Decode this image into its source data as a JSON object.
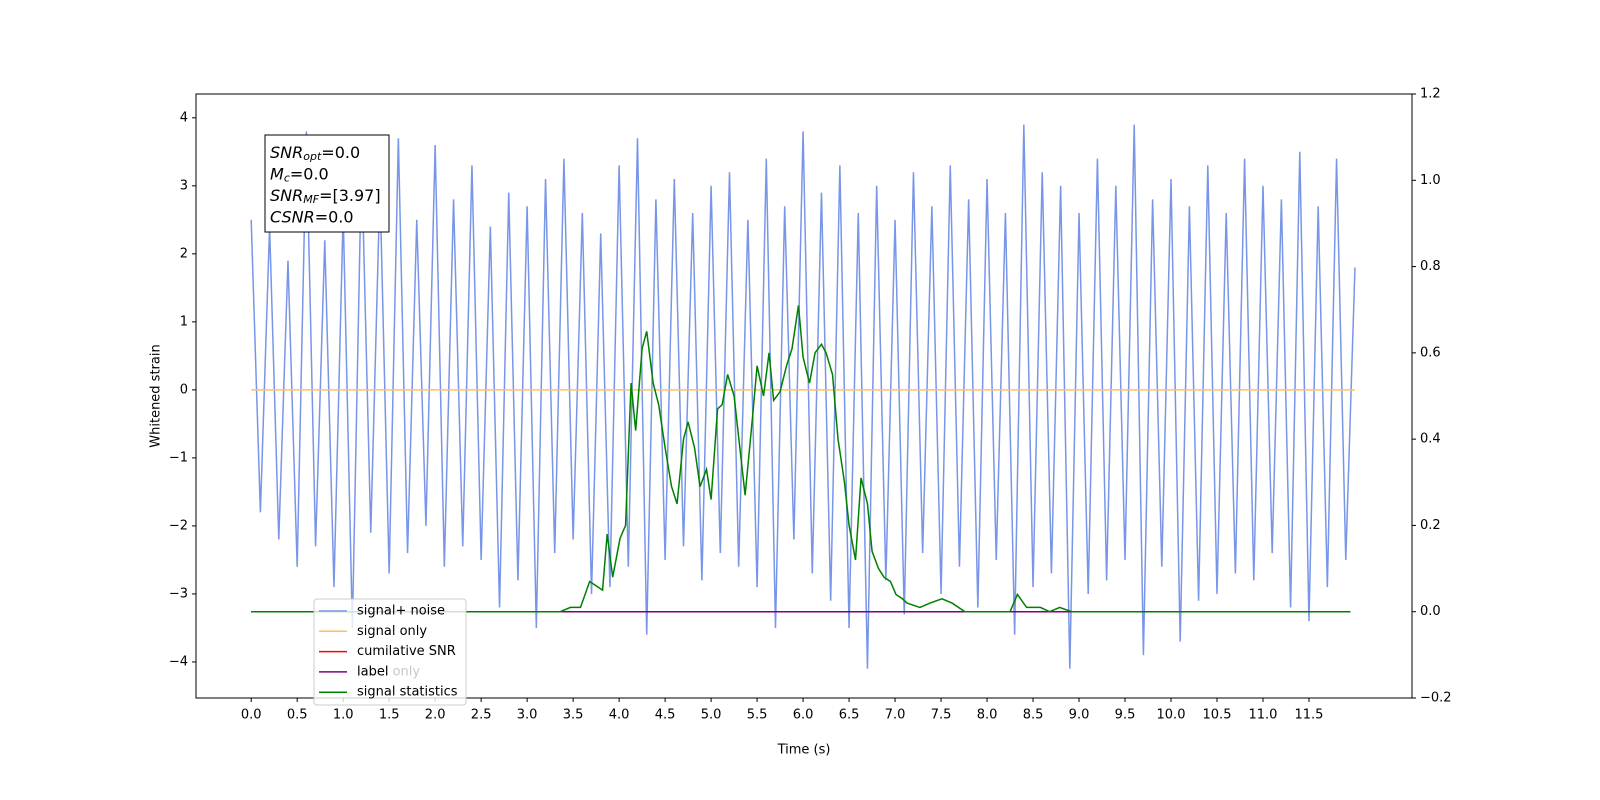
{
  "chart_data": {
    "type": "line",
    "xlabel": "Time (s)",
    "ylabel": "Whitened strain",
    "xlim": [
      -0.6,
      12.62
    ],
    "ylim": [
      -4.53,
      4.35
    ],
    "y2lim": [
      -0.2,
      1.2
    ],
    "xticks": [
      {
        "value": 0,
        "label": "0.0"
      },
      0.5,
      {
        "value": 1,
        "label": "1.0"
      },
      1.5,
      {
        "value": 2,
        "label": "2.0"
      },
      2.5,
      {
        "value": 3,
        "label": "3.0"
      },
      3.5,
      {
        "value": 4,
        "label": "4.0"
      },
      4.5,
      {
        "value": 5,
        "label": "5.0"
      },
      5.5,
      {
        "value": 6,
        "label": "6.0"
      },
      6.5,
      {
        "value": 7,
        "label": "7.0"
      },
      7.5,
      {
        "value": 8,
        "label": "8.0"
      },
      8.5,
      {
        "value": 9,
        "label": "9.0"
      },
      9.5,
      {
        "value": 10,
        "label": "10.0"
      },
      10.5,
      {
        "value": 11,
        "label": "11.0"
      },
      11.5
    ],
    "yticks": [
      {
        "value": -4,
        "label": "−4"
      },
      {
        "value": -3,
        "label": "−3"
      },
      {
        "value": -2,
        "label": "−2"
      },
      {
        "value": -1,
        "label": "−1"
      },
      0,
      1,
      2,
      3,
      4
    ],
    "y2ticks": [
      {
        "value": -0.2,
        "label": "−0.2"
      },
      {
        "value": 0,
        "label": "0.0"
      },
      0.2,
      0.4,
      0.6,
      0.8,
      {
        "value": 1,
        "label": "1.0"
      },
      1.2
    ],
    "legend": "lower left",
    "legend_overlap_text": "label only",
    "annotations": [
      {
        "main": "SNR",
        "sub": "opt",
        "rest": "=0.0"
      },
      {
        "main": "M",
        "sub": "c",
        "rest": "=0.0"
      },
      {
        "main": "SNR",
        "sub": "MF",
        "rest": "=[3.97]"
      },
      {
        "main": "CSNR",
        "sub": "",
        "rest": "=0.0"
      }
    ],
    "series": [
      {
        "name": "signal+ noise",
        "color": "#7895e8",
        "axis": "y",
        "x": [
          0,
          0.1,
          0.2,
          0.3,
          0.4,
          0.5,
          0.6,
          0.7,
          0.8,
          0.9,
          1,
          1.1,
          1.2,
          1.3,
          1.4,
          1.5,
          1.6,
          1.7,
          1.8,
          1.9,
          2,
          2.1,
          2.2,
          2.3,
          2.4,
          2.5,
          2.6,
          2.7,
          2.8,
          2.9,
          3,
          3.1,
          3.2,
          3.3,
          3.4,
          3.5,
          3.6,
          3.7,
          3.8,
          3.9,
          4,
          4.1,
          4.2,
          4.3,
          4.4,
          4.5,
          4.6,
          4.7,
          4.8,
          4.9,
          5,
          5.1,
          5.2,
          5.3,
          5.4,
          5.5,
          5.6,
          5.7,
          5.8,
          5.9,
          6,
          6.1,
          6.2,
          6.3,
          6.4,
          6.5,
          6.6,
          6.7,
          6.8,
          6.9,
          7,
          7.1,
          7.2,
          7.3,
          7.4,
          7.5,
          7.6,
          7.7,
          7.8,
          7.9,
          8,
          8.1,
          8.2,
          8.3,
          8.4,
          8.5,
          8.6,
          8.7,
          8.8,
          8.9,
          9,
          9.1,
          9.2,
          9.3,
          9.4,
          9.5,
          9.6,
          9.7,
          9.8,
          9.9,
          10,
          10.1,
          10.2,
          10.3,
          10.4,
          10.5,
          10.6,
          10.7,
          10.8,
          10.9,
          11,
          11.1,
          11.2,
          11.3,
          11.4,
          11.5,
          11.6,
          11.7,
          11.8,
          11.9,
          12
        ],
        "values": [
          2.5,
          -1.8,
          2.4,
          -2.2,
          1.9,
          -2.6,
          3.8,
          -2.3,
          2.2,
          -2.9,
          2.6,
          -3.5,
          3.4,
          -2.1,
          3.0,
          -2.7,
          3.7,
          -2.4,
          2.5,
          -2.0,
          3.6,
          -2.6,
          2.8,
          -2.3,
          3.3,
          -2.5,
          2.4,
          -3.2,
          2.9,
          -2.8,
          2.7,
          -3.5,
          3.1,
          -2.4,
          3.4,
          -2.2,
          2.6,
          -3.0,
          2.3,
          -2.9,
          3.3,
          -2.6,
          3.7,
          -3.6,
          2.8,
          -2.5,
          3.1,
          -2.3,
          2.6,
          -2.8,
          3.0,
          -2.4,
          3.2,
          -2.6,
          2.5,
          -2.9,
          3.4,
          -3.5,
          2.7,
          -2.2,
          3.8,
          -2.7,
          2.9,
          -3.1,
          3.3,
          -3.5,
          2.6,
          -4.1,
          3.0,
          -2.8,
          2.5,
          -3.3,
          3.2,
          -2.4,
          2.7,
          -3.0,
          3.3,
          -2.6,
          2.8,
          -3.2,
          3.1,
          -2.5,
          2.6,
          -3.6,
          3.9,
          -2.9,
          3.2,
          -2.7,
          3.0,
          -4.1,
          2.6,
          -3.0,
          3.4,
          -2.8,
          3.0,
          -2.5,
          3.9,
          -3.9,
          2.8,
          -2.6,
          3.1,
          -3.7,
          2.7,
          -3.1,
          3.3,
          -3.0,
          2.6,
          -2.7,
          3.4,
          -2.8,
          3.0,
          -2.4,
          2.8,
          -3.2,
          3.5,
          -3.4,
          2.7,
          -2.9,
          3.4,
          -2.5,
          1.8
        ]
      },
      {
        "name": "signal only",
        "color": "#ffbf66",
        "axis": "y",
        "x": [
          0,
          12
        ],
        "values": [
          0,
          0
        ]
      },
      {
        "name": "cumilative SNR",
        "color": "#ff0000",
        "axis": "y2",
        "x": [
          0,
          11.95
        ],
        "values": [
          0,
          0
        ]
      },
      {
        "name": "label",
        "color": "#800080",
        "axis": "y2",
        "x": [
          0,
          11.95
        ],
        "values": [
          0,
          0
        ]
      },
      {
        "name": "signal statistics",
        "color": "#008000",
        "axis": "y2",
        "x": [
          0,
          3.36,
          3.47,
          3.58,
          3.68,
          3.82,
          3.87,
          3.93,
          4.01,
          4.07,
          4.13,
          4.18,
          4.25,
          4.3,
          4.37,
          4.43,
          4.5,
          4.57,
          4.63,
          4.7,
          4.75,
          4.82,
          4.88,
          4.95,
          5.0,
          5.07,
          5.12,
          5.18,
          5.25,
          5.37,
          5.45,
          5.5,
          5.57,
          5.63,
          5.68,
          5.75,
          5.82,
          5.88,
          5.95,
          6.0,
          6.07,
          6.13,
          6.2,
          6.25,
          6.32,
          6.38,
          6.45,
          6.5,
          6.57,
          6.63,
          6.7,
          6.75,
          6.82,
          6.88,
          6.95,
          7.01,
          7.08,
          7.13,
          7.27,
          7.38,
          7.51,
          7.62,
          7.76,
          8.25,
          8.33,
          8.43,
          8.58,
          8.68,
          8.79,
          8.92,
          11.95
        ],
        "values": [
          0,
          0,
          0.01,
          0.01,
          0.07,
          0.05,
          0.18,
          0.08,
          0.17,
          0.2,
          0.53,
          0.42,
          0.61,
          0.65,
          0.53,
          0.48,
          0.38,
          0.29,
          0.25,
          0.4,
          0.44,
          0.38,
          0.29,
          0.33,
          0.26,
          0.47,
          0.48,
          0.55,
          0.5,
          0.27,
          0.45,
          0.57,
          0.5,
          0.6,
          0.49,
          0.51,
          0.57,
          0.61,
          0.71,
          0.59,
          0.53,
          0.6,
          0.62,
          0.6,
          0.55,
          0.4,
          0.3,
          0.2,
          0.12,
          0.31,
          0.25,
          0.14,
          0.1,
          0.08,
          0.07,
          0.04,
          0.03,
          0.02,
          0.01,
          0.02,
          0.03,
          0.02,
          0,
          0,
          0.04,
          0.01,
          0.01,
          0,
          0.01,
          0,
          0
        ]
      }
    ]
  }
}
